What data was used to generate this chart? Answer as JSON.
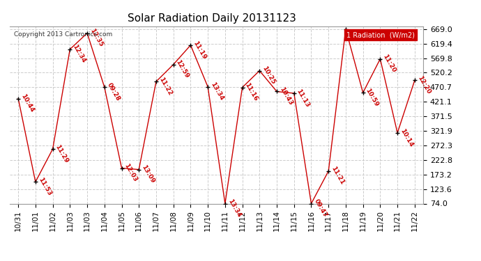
{
  "title": "Solar Radiation Daily 20131123",
  "copyright": "Copyright 2013 Cartronics.com",
  "legend_label": "1 Radiation  (W/m2)",
  "x_labels": [
    "10/31",
    "11/01",
    "11/02",
    "11/03",
    "11/03",
    "11/04",
    "11/05",
    "11/06",
    "11/07",
    "11/08",
    "11/09",
    "11/10",
    "11/11",
    "11/12",
    "11/13",
    "11/14",
    "11/15",
    "11/16",
    "11/17",
    "11/18",
    "11/19",
    "11/20",
    "11/21",
    "11/22"
  ],
  "y_values": [
    432,
    148,
    260,
    600,
    655,
    471,
    195,
    190,
    490,
    548,
    614,
    472,
    74,
    470,
    527,
    456,
    450,
    74,
    185,
    669,
    452,
    567,
    315,
    494
  ],
  "time_labels": [
    "10:44",
    "11:53",
    "11:29",
    "12:34",
    "12:35",
    "09:28",
    "12:03",
    "13:09",
    "11:22",
    "12:59",
    "11:19",
    "13:34",
    "13:34",
    "11:16",
    "10:25",
    "10:43",
    "11:13",
    "09:47",
    "11:21",
    "",
    "10:59",
    "11:20",
    "10:14",
    "12:20"
  ],
  "ylim": [
    74.0,
    669.0
  ],
  "yticks": [
    74.0,
    123.6,
    173.2,
    222.8,
    272.3,
    321.9,
    371.5,
    421.1,
    470.7,
    520.2,
    569.8,
    619.4,
    669.0
  ],
  "background_color": "#ffffff",
  "plot_bg_color": "#ffffff",
  "grid_color": "#cccccc",
  "line_color": "#cc0000",
  "marker_color": "#000000",
  "text_color": "#cc0000",
  "title_color": "#000000",
  "legend_bg": "#cc0000",
  "legend_text": "#ffffff"
}
